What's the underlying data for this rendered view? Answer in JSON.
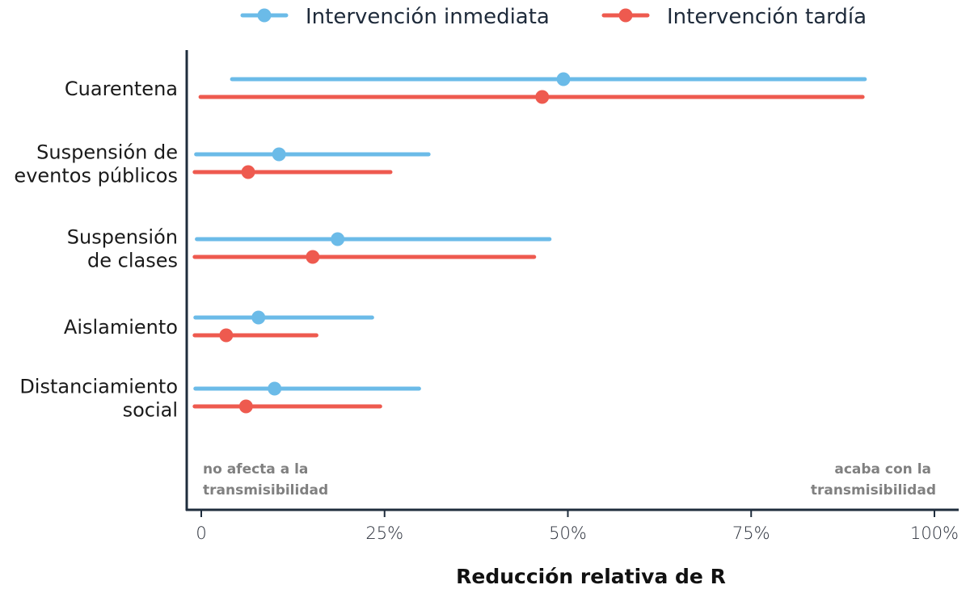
{
  "chart_data": {
    "type": "dot-range",
    "title": "",
    "xlabel": "Reducción relativa de R",
    "ylabel": "",
    "xlim": [
      0,
      100
    ],
    "x_ticks": [
      "0",
      "25%",
      "50%",
      "75%",
      "100%"
    ],
    "x_tick_values": [
      0,
      25,
      50,
      75,
      100
    ],
    "grid": false,
    "legend_position": "top",
    "categories": [
      [
        "Cuarentena"
      ],
      [
        "Suspensión de",
        "eventos públicos"
      ],
      [
        "Suspensión",
        "de clases"
      ],
      [
        "Aislamiento"
      ],
      [
        "Distanciamiento",
        "social"
      ]
    ],
    "series": [
      {
        "name": "Intervención inmediata",
        "color": "#6bbbe8",
        "estimate": [
          49.4,
          10.6,
          18.6,
          7.8,
          10.0
        ],
        "low": [
          4.2,
          -0.7,
          -0.6,
          -0.8,
          -0.8
        ],
        "high": [
          90.5,
          31.0,
          47.5,
          23.3,
          29.7
        ]
      },
      {
        "name": "Intervención tardía",
        "color": "#ee5a4f",
        "estimate": [
          46.5,
          6.4,
          15.2,
          3.4,
          6.1
        ],
        "low": [
          -0.1,
          -0.9,
          -0.9,
          -0.9,
          -0.9
        ],
        "high": [
          90.2,
          25.8,
          45.4,
          15.7,
          24.4
        ]
      }
    ],
    "annotations": {
      "left": [
        "no afecta a la",
        "transmisibilidad"
      ],
      "right": [
        "acaba con la",
        "transmisibilidad"
      ]
    }
  }
}
